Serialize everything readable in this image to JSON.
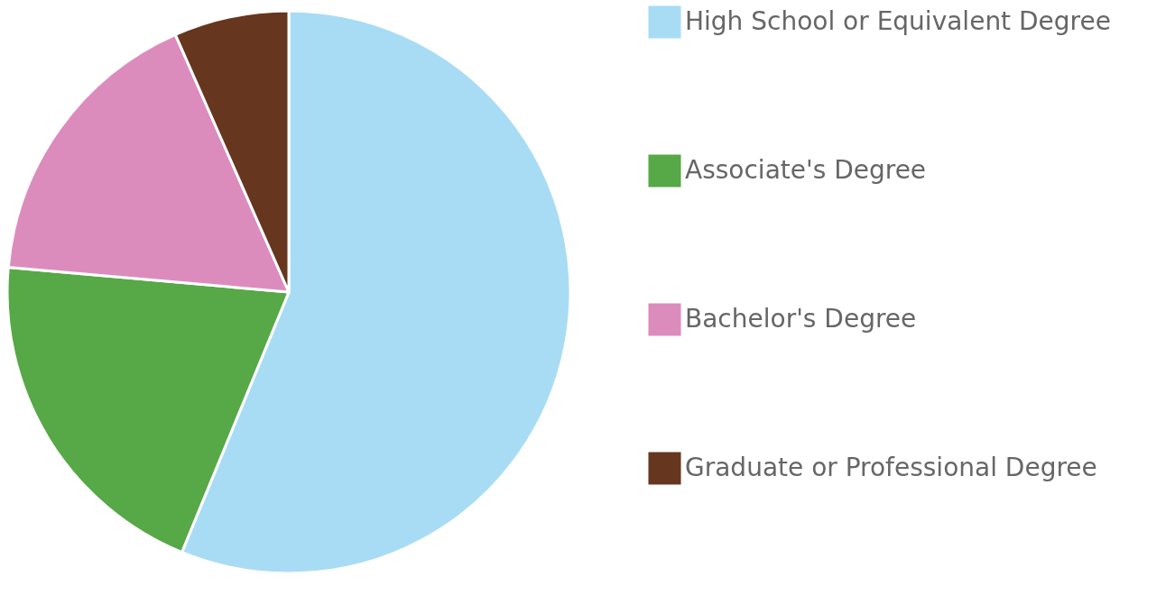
{
  "chart_data": {
    "type": "pie",
    "categories": [
      "High School or Equivalent Degree",
      "Associate's Degree",
      "Bachelor's Degree",
      "Graduate or Professional Degree"
    ],
    "values": [
      56.2,
      20.2,
      17.0,
      6.6
    ],
    "colors": [
      "#a8dcf5",
      "#57a846",
      "#dc8cbc",
      "#66361e"
    ],
    "legend": "right"
  }
}
